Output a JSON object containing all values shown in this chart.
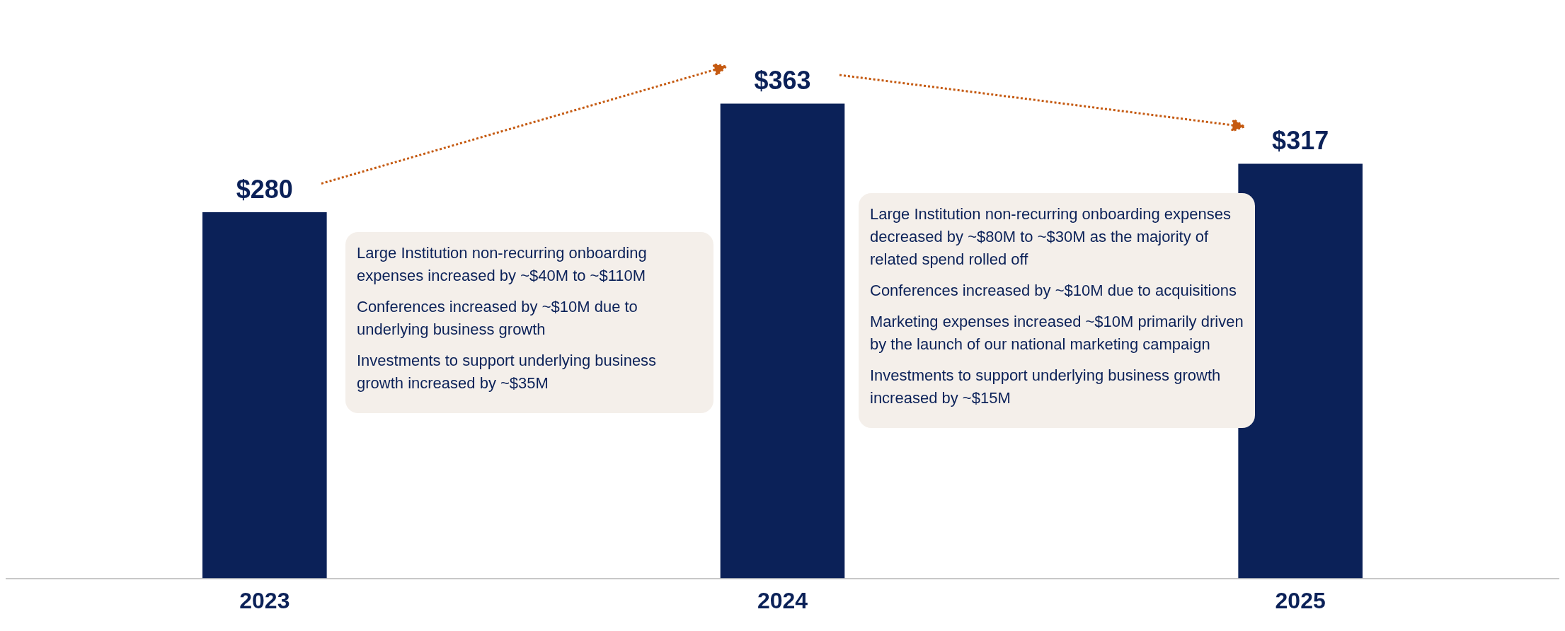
{
  "chart_data": {
    "type": "bar",
    "categories": [
      "2023",
      "2024",
      "2025"
    ],
    "values": [
      280,
      363,
      317
    ],
    "color": "#0b2158",
    "value_labels": [
      "$280",
      "$363",
      "$317"
    ],
    "grid": false,
    "legend": false,
    "annotations": [
      "Large Institution non-recurring onboarding expenses increased by ~$40M to ~$110M\nConferences increased by ~$10M due to underlying business growth\nInvestments to support underlying business growth increased by ~$35M",
      "Large Institution non-recurring onboarding expenses decreased by ~$80M to ~$30M as the majority of related spend rolled off\nConferences increased by ~$10M due to acquisitions\nMarketing expenses increased ~$10M primarily driven by the launch of our national marketing campaign\nInvestments to support underlying business growth increased by ~$15M"
    ]
  }
}
